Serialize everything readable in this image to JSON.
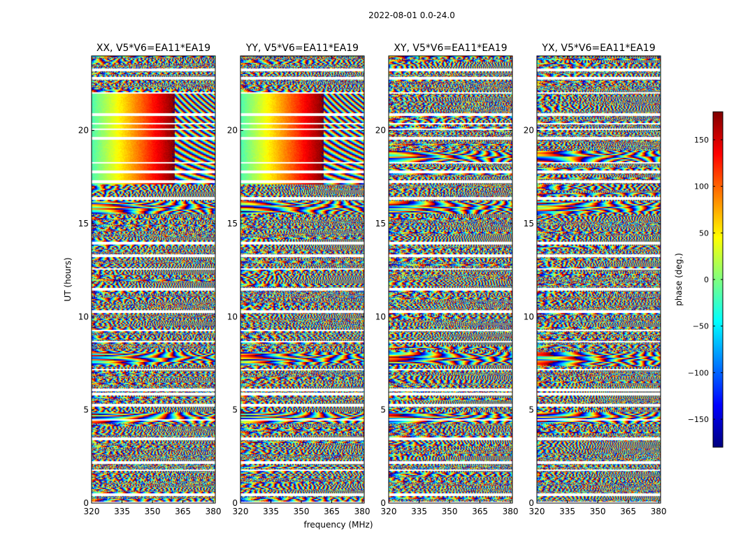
{
  "figure": {
    "suptitle": "2022-08-01 0.0-24.0",
    "xlabel": "frequency (MHz)",
    "ylabel": "UT (hours)",
    "colorbar_label": "phase (deg.)"
  },
  "chart_data": {
    "type": "heatmap",
    "title": "2022-08-01 0.0-24.0",
    "xlabel": "frequency (MHz)",
    "ylabel": "UT (hours)",
    "xlim": [
      320,
      381
    ],
    "ylim": [
      0,
      24
    ],
    "xticks": [
      320,
      335,
      350,
      365,
      380
    ],
    "yticks": [
      0,
      5,
      10,
      15,
      20
    ],
    "colorbar": {
      "label": "phase (deg.)",
      "range": [
        -180,
        180
      ],
      "ticks": [
        150,
        100,
        50,
        0,
        -50,
        -100,
        -150
      ],
      "tick_labels": [
        "150",
        "100",
        "50",
        "0",
        "−50",
        "−100",
        "−150"
      ],
      "colormap": [
        "#00007f",
        "#0000ff",
        "#007fff",
        "#00ffff",
        "#7fff7f",
        "#ffff00",
        "#ff7f00",
        "#ff0000",
        "#7f0000"
      ]
    },
    "panels": [
      {
        "title": "XX, V5*V6=EA11*EA19",
        "mode": "parallel",
        "seed": 11
      },
      {
        "title": "YY, V5*V6=EA11*EA19",
        "mode": "parallel",
        "seed": 23
      },
      {
        "title": "XY, V5*V6=EA11*EA19",
        "mode": "cross",
        "seed": 37
      },
      {
        "title": "YX, V5*V6=EA11*EA19",
        "mode": "cross",
        "seed": 53
      }
    ],
    "features": {
      "smooth_gradient_hours": [
        17.1,
        22.0
      ],
      "gradient_split_mhz": 361,
      "blank_rows_hours": [
        0.05,
        0.5,
        1.8,
        2.2,
        3.5,
        4.5,
        5.3,
        5.9,
        6.1,
        7.2,
        8.7,
        9.3,
        10.3,
        11.5,
        12.6,
        13.3,
        14.0,
        16.4,
        17.3,
        17.8,
        18.3,
        19.6,
        20.1,
        20.4,
        20.9,
        22.05,
        22.85,
        23.3
      ],
      "fringe_bands_hours": [
        4.6,
        7.8,
        15.9,
        18.6
      ]
    },
    "series": [
      {
        "name": "XX",
        "values": []
      },
      {
        "name": "YY",
        "values": []
      },
      {
        "name": "XY",
        "values": []
      },
      {
        "name": "YX",
        "values": []
      }
    ]
  }
}
